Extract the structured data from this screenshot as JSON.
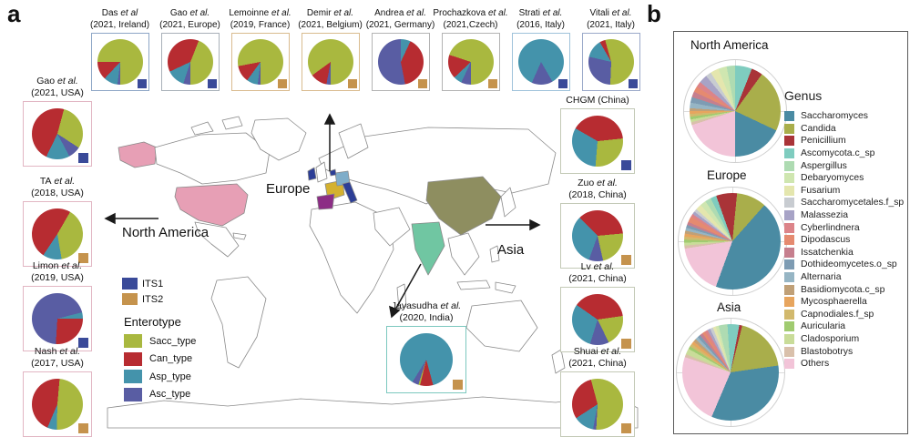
{
  "figure": {
    "panel_a_label": "a",
    "panel_b_label": "b"
  },
  "panel_a": {
    "map_labels": {
      "europe": "Europe",
      "north_america": "North America",
      "asia": "Asia"
    },
    "colors": {
      "Sacc_type": "#a9b83f",
      "Can_type": "#b72c31",
      "Asp_type": "#4493ab",
      "Asc_type": "#595da3",
      "ITS1": "#3a4a99",
      "ITS2": "#c5934d"
    },
    "its_legend": [
      {
        "label": "ITS1",
        "color_key": "ITS1"
      },
      {
        "label": "ITS2",
        "color_key": "ITS2"
      }
    ],
    "enterotype_legend": {
      "title": "Enterotype",
      "items": [
        {
          "label": "Sacc_type",
          "color_key": "Sacc_type"
        },
        {
          "label": "Can_type",
          "color_key": "Can_type"
        },
        {
          "label": "Asp_type",
          "color_key": "Asp_type"
        },
        {
          "label": "Asc_type",
          "color_key": "Asc_type"
        }
      ]
    },
    "map_colors": {
      "usa": "#e79fb5",
      "china": "#8e8e60",
      "india": "#70c6a2",
      "france": "#d4b12f",
      "germany": "#7fadc9",
      "spain": "#8c2d85",
      "italy": "#2c3e96",
      "ireland": "#2c3e96",
      "belgium": "#2c3e96"
    }
  },
  "panel_b": {
    "genus_legend": {
      "title": "Genus",
      "items": [
        {
          "label": "Saccharomyces",
          "color": "#4a8ba3"
        },
        {
          "label": "Candida",
          "color": "#a9ae4b"
        },
        {
          "label": "Penicillium",
          "color": "#a93438"
        },
        {
          "label": "Ascomycota.c_sp",
          "color": "#7fccbf"
        },
        {
          "label": "Aspergillus",
          "color": "#aedbb2"
        },
        {
          "label": "Debaryomyces",
          "color": "#cfe6b0"
        },
        {
          "label": "Fusarium",
          "color": "#e4e6ae"
        },
        {
          "label": "Saccharomycetales.f_sp",
          "color": "#c8ccd1"
        },
        {
          "label": "Malassezia",
          "color": "#a7a3c6"
        },
        {
          "label": "Cyberlindnera",
          "color": "#dc8489"
        },
        {
          "label": "Dipodascus",
          "color": "#e58a70"
        },
        {
          "label": "Issatchenkia",
          "color": "#c67f8e"
        },
        {
          "label": "Dothideomycetes.o_sp",
          "color": "#7e9cb3"
        },
        {
          "label": "Alternaria",
          "color": "#96b5c4"
        },
        {
          "label": "Basidiomycota.c_sp",
          "color": "#c0a077"
        },
        {
          "label": "Mycosphaerella",
          "color": "#e7a55e"
        },
        {
          "label": "Capnodiales.f_sp",
          "color": "#d2b96d"
        },
        {
          "label": "Auricularia",
          "color": "#a0cb70"
        },
        {
          "label": "Cladosporium",
          "color": "#c9dc99"
        },
        {
          "label": "Blastobotrys",
          "color": "#d9c0ab"
        },
        {
          "label": "Others",
          "color": "#f2c4d8"
        }
      ]
    }
  },
  "chart_data": [
    {
      "type": "pie",
      "group": "top",
      "name": "Das",
      "etal": "et al",
      "loc": "(2021, Ireland)",
      "marker": "ITS1",
      "border": "#8da6c6",
      "start": 180,
      "units": "percent",
      "slices": [
        [
          "Asc_type",
          2
        ],
        [
          "Asp_type",
          10
        ],
        [
          "Can_type",
          13
        ],
        [
          "Sacc_type",
          75
        ]
      ]
    },
    {
      "type": "pie",
      "group": "top",
      "name": "Gao",
      "etal": "et al.",
      "loc": "(2021, Europe)",
      "marker": "ITS1",
      "border": "#a8b0b8",
      "start": 180,
      "units": "percent",
      "slices": [
        [
          "Asc_type",
          5
        ],
        [
          "Asp_type",
          13
        ],
        [
          "Can_type",
          38
        ],
        [
          "Sacc_type",
          44
        ]
      ]
    },
    {
      "type": "pie",
      "group": "top",
      "name": "Lemoinne",
      "etal": "et al.",
      "loc": "(2019, France)",
      "marker": "ITS2",
      "border": "#d9bb8e",
      "start": 180,
      "units": "percent",
      "slices": [
        [
          "Asc_type",
          2
        ],
        [
          "Asp_type",
          8
        ],
        [
          "Can_type",
          12
        ],
        [
          "Sacc_type",
          78
        ]
      ]
    },
    {
      "type": "pie",
      "group": "top",
      "name": "Demir",
      "etal": "et al.",
      "loc": "(2021, Belgium)",
      "marker": "ITS2",
      "border": "#d9bb8e",
      "start": 180,
      "units": "percent",
      "slices": [
        [
          "Asc_type",
          3
        ],
        [
          "Can_type",
          12
        ],
        [
          "Sacc_type",
          85
        ]
      ]
    },
    {
      "type": "pie",
      "group": "top",
      "name": "Andrea",
      "etal": "et al.",
      "loc": "(2021, Germany)",
      "marker": "ITS2",
      "border": "#b3b3b3",
      "start": 25,
      "units": "percent",
      "slices": [
        [
          "Can_type",
          40
        ],
        [
          "Asc_type",
          53
        ],
        [
          "Asp_type",
          7
        ]
      ]
    },
    {
      "type": "pie",
      "group": "top",
      "name": "Prochazkova",
      "etal": "et al.",
      "loc": "(2021,Czech)",
      "marker": "ITS2",
      "border": "#b3b3b3",
      "start": 180,
      "units": "percent",
      "slices": [
        [
          "Asc_type",
          7
        ],
        [
          "Asp_type",
          6
        ],
        [
          "Can_type",
          17
        ],
        [
          "Sacc_type",
          70
        ]
      ]
    },
    {
      "type": "pie",
      "group": "top",
      "name": "Strati",
      "etal": "et al.",
      "loc": "(2016, Italy)",
      "marker": "ITS1",
      "border": "#9fc2da",
      "start": 150,
      "units": "percent",
      "slices": [
        [
          "Asc_type",
          15
        ],
        [
          "Asp_type",
          85
        ]
      ]
    },
    {
      "type": "pie",
      "group": "top",
      "name": "Vitali",
      "etal": "et al.",
      "loc": "(2021, Italy)",
      "marker": "ITS1",
      "border": "#9aa9c9",
      "start": 330,
      "units": "percent",
      "slices": [
        [
          "Can_type",
          4
        ],
        [
          "Sacc_type",
          55
        ],
        [
          "Asc_type",
          28
        ],
        [
          "Asp_type",
          13
        ]
      ]
    },
    {
      "type": "pie",
      "group": "left",
      "name": "Gao",
      "etal": "et al.",
      "loc": "(2021, USA)",
      "marker": "ITS1",
      "border": "#e2b6c3",
      "start": 15,
      "units": "percent",
      "slices": [
        [
          "Sacc_type",
          30
        ],
        [
          "Asc_type",
          8
        ],
        [
          "Asp_type",
          15
        ],
        [
          "Can_type",
          47
        ]
      ]
    },
    {
      "type": "pie",
      "group": "left",
      "name": "TA",
      "etal": "et al.",
      "loc": "(2018, USA)",
      "marker": "ITS2",
      "border": "#e2b6c3",
      "start": 30,
      "units": "percent",
      "slices": [
        [
          "Sacc_type",
          39
        ],
        [
          "Asp_type",
          12
        ],
        [
          "Can_type",
          49
        ]
      ]
    },
    {
      "type": "pie",
      "group": "left",
      "name": "Limon",
      "etal": "et al.",
      "loc": "(2019, USA)",
      "marker": "ITS1",
      "border": "#e2b6c3",
      "start": 90,
      "units": "percent",
      "slices": [
        [
          "Can_type",
          26
        ],
        [
          "Asc_type",
          70
        ],
        [
          "Asp_type",
          4
        ]
      ]
    },
    {
      "type": "pie",
      "group": "left",
      "name": "Nash",
      "etal": "et al.",
      "loc": "(2017, USA)",
      "marker": "ITS2",
      "border": "#e2b6c3",
      "start": 5,
      "units": "percent",
      "slices": [
        [
          "Sacc_type",
          49
        ],
        [
          "Asp_type",
          6
        ],
        [
          "Can_type",
          45
        ]
      ]
    },
    {
      "type": "pie",
      "group": "right",
      "name": "CHGM (China)",
      "etal": "",
      "loc": "",
      "marker": "ITS1",
      "border": "#c3c9b6",
      "start": 300,
      "units": "percent",
      "slices": [
        [
          "Can_type",
          40
        ],
        [
          "Sacc_type",
          28
        ],
        [
          "Asp_type",
          32
        ]
      ]
    },
    {
      "type": "pie",
      "group": "right",
      "name": "Zuo",
      "etal": "et al.",
      "loc": "(2018, China)",
      "marker": "ITS2",
      "border": "#c3c9b6",
      "start": 315,
      "units": "percent",
      "slices": [
        [
          "Can_type",
          36
        ],
        [
          "Sacc_type",
          23
        ],
        [
          "Asc_type",
          9
        ],
        [
          "Asp_type",
          32
        ]
      ]
    },
    {
      "type": "pie",
      "group": "right",
      "name": "Lv",
      "etal": "et al.",
      "loc": "(2021, China)",
      "marker": "ITS2",
      "border": "#c3c9b6",
      "start": 305,
      "units": "percent",
      "slices": [
        [
          "Can_type",
          38
        ],
        [
          "Sacc_type",
          20
        ],
        [
          "Asc_type",
          12
        ],
        [
          "Asp_type",
          30
        ]
      ]
    },
    {
      "type": "pie",
      "group": "right",
      "name": "Shuai",
      "etal": "et al.",
      "loc": "(2021, China)",
      "marker": "ITS2",
      "border": "#c3c9b6",
      "start": 345,
      "units": "percent",
      "slices": [
        [
          "Sacc_type",
          55
        ],
        [
          "Asc_type",
          2
        ],
        [
          "Asp_type",
          13
        ],
        [
          "Can_type",
          30
        ]
      ]
    },
    {
      "type": "pie",
      "group": "india",
      "name": "Jayasudha",
      "etal": "et al.",
      "loc": "(2020, India)",
      "marker": "ITS2",
      "border": "#7cc8bf",
      "start": 165,
      "units": "percent",
      "slices": [
        [
          "Can_type",
          8
        ],
        [
          "Sacc_type",
          1
        ],
        [
          "Asc_type",
          4
        ],
        [
          "Asp_type",
          87
        ]
      ]
    },
    {
      "type": "pie",
      "group": "region_b",
      "title": "North America",
      "categories_ref": "panel_b.genus_legend.items",
      "start": 180,
      "units": "percent",
      "values": [
        18,
        22,
        4,
        6,
        3,
        3,
        3,
        2,
        3,
        2,
        2,
        2,
        2,
        2,
        1,
        1,
        1,
        1,
        1,
        1,
        20
      ]
    },
    {
      "type": "pie",
      "group": "region_b",
      "title": "Europe",
      "categories_ref": "panel_b.genus_legend.items",
      "start": 200,
      "units": "percent",
      "values": [
        44,
        10,
        7,
        2,
        2,
        2,
        2,
        1,
        1,
        1,
        2,
        1,
        1,
        1,
        1,
        1,
        1,
        1,
        1,
        1,
        17
      ]
    },
    {
      "type": "pie",
      "group": "region_b",
      "title": "Asia",
      "categories_ref": "panel_b.genus_legend.items",
      "start": 203,
      "units": "percent",
      "values": [
        34,
        19,
        1,
        4,
        3,
        1,
        1,
        1,
        1,
        1,
        1,
        1,
        1,
        1,
        1,
        1,
        1,
        1,
        2,
        1,
        24
      ]
    }
  ]
}
